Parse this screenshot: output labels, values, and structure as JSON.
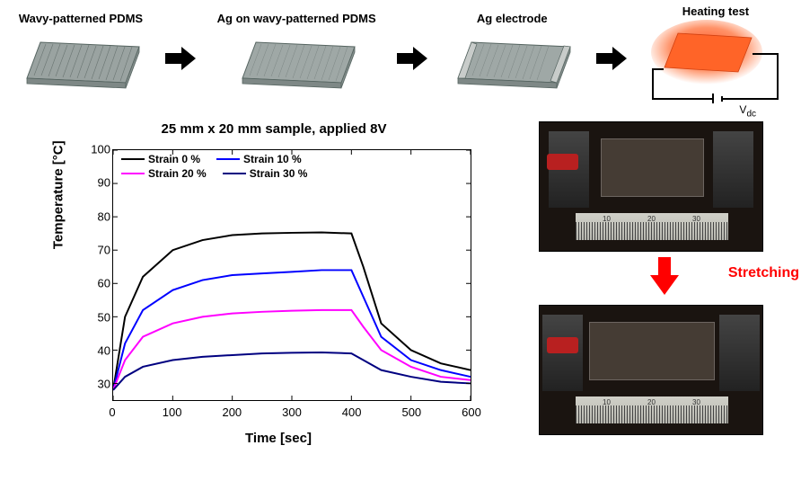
{
  "process": {
    "steps": [
      {
        "label": "Wavy-patterned PDMS"
      },
      {
        "label": "Ag on wavy-patterned PDMS"
      },
      {
        "label": "Ag electrode"
      },
      {
        "label": "Heating test"
      }
    ],
    "slab": {
      "fill_top": "#9aa3a1",
      "fill_side": "#7e8886",
      "stroke": "#556460",
      "electrode_fill": "#c8ccca"
    },
    "heating": {
      "glow_inner": "#ff4a1a",
      "glow_outer": "rgba(255,110,50,0)",
      "slab_fill": "#ff6428",
      "circuit_color": "#000000",
      "vdc_label": "V",
      "vdc_sub": "dc"
    },
    "arrow_color": "#000000"
  },
  "chart": {
    "type": "line",
    "title": "25 mm x 20 mm sample, applied 8V",
    "xlabel": "Time [sec]",
    "ylabel": "Temperature [°C]",
    "xlim": [
      0,
      600
    ],
    "ylim": [
      25,
      100
    ],
    "xtick_step": 100,
    "ytick_step": 10,
    "xticks": [
      0,
      100,
      200,
      300,
      400,
      500,
      600
    ],
    "yticks": [
      30,
      40,
      50,
      60,
      70,
      80,
      90,
      100
    ],
    "background_color": "#ffffff",
    "grid_on": false,
    "border_color": "#000000",
    "label_fontsize": 15,
    "title_fontsize": 15,
    "tick_fontsize": 13,
    "line_width": 2,
    "legend_fontsize": 12,
    "legend_pos": "upper-left-inside",
    "series": [
      {
        "name": "Strain 0 %",
        "color": "#000000",
        "x": [
          0,
          20,
          50,
          100,
          150,
          200,
          250,
          300,
          350,
          400,
          420,
          450,
          500,
          550,
          600
        ],
        "y": [
          28,
          50,
          62,
          70,
          73,
          74.5,
          75,
          75.2,
          75.3,
          75,
          65,
          48,
          40,
          36,
          34
        ]
      },
      {
        "name": "Strain 10 %",
        "color": "#0000ff",
        "x": [
          0,
          20,
          50,
          100,
          150,
          200,
          250,
          300,
          350,
          400,
          420,
          450,
          500,
          550,
          600
        ],
        "y": [
          28,
          42,
          52,
          58,
          61,
          62.5,
          63,
          63.5,
          64,
          64,
          56,
          44,
          37,
          34,
          32
        ]
      },
      {
        "name": "Strain 20 %",
        "color": "#ff00ff",
        "x": [
          0,
          20,
          50,
          100,
          150,
          200,
          250,
          300,
          350,
          400,
          420,
          450,
          500,
          550,
          600
        ],
        "y": [
          28,
          37,
          44,
          48,
          50,
          51,
          51.5,
          51.8,
          52,
          52,
          47,
          40,
          35,
          32,
          31
        ]
      },
      {
        "name": "Strain 30 %",
        "color": "#000080",
        "x": [
          0,
          20,
          50,
          100,
          150,
          200,
          250,
          300,
          350,
          400,
          420,
          450,
          500,
          550,
          600
        ],
        "y": [
          28,
          32,
          35,
          37,
          38,
          38.5,
          39,
          39.2,
          39.3,
          39,
          37,
          34,
          32,
          30.5,
          30
        ]
      }
    ]
  },
  "photos": {
    "stretch_label": "Stretching",
    "arrow_color": "#ff0000",
    "ruler_nums": [
      "10",
      "20",
      "30"
    ],
    "ruler_bg": "#c8c8c0",
    "grip_color": "#333333",
    "bg_color": "#1a1410"
  }
}
